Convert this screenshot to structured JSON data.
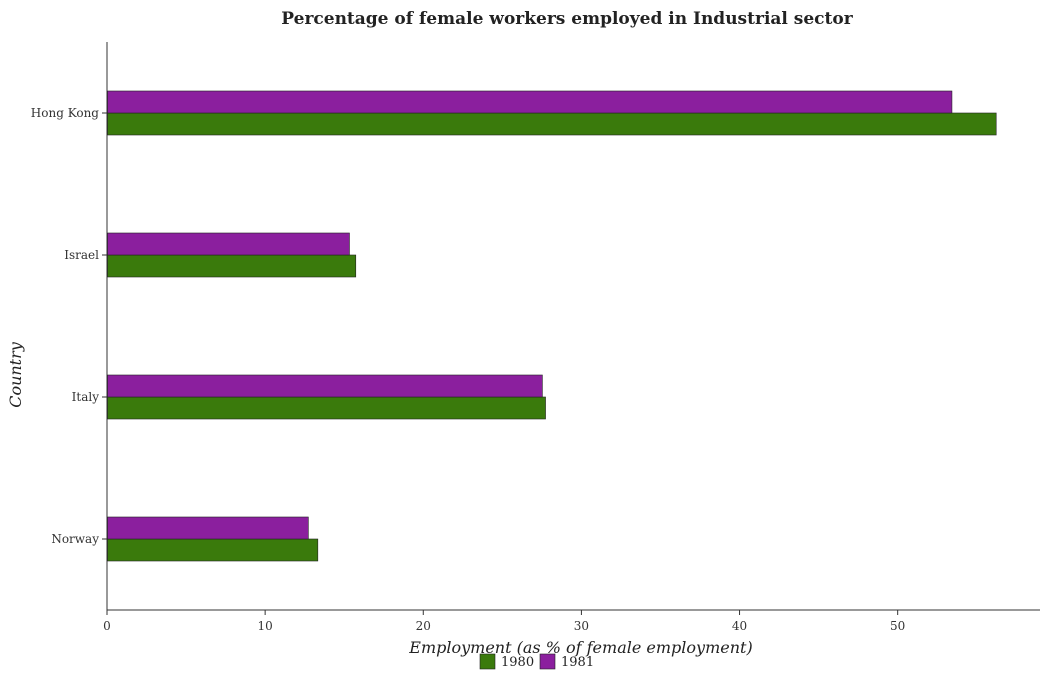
{
  "chart_data": {
    "type": "bar",
    "orientation": "horizontal",
    "title": "Percentage of female workers employed in Industrial sector",
    "xlabel": "Employment (as % of female employment)",
    "ylabel": "Country",
    "categories": [
      "Hong Kong",
      "Israel",
      "Italy",
      "Norway"
    ],
    "series": [
      {
        "name": "1980",
        "color": "#3a7a0c",
        "values": [
          56.2,
          15.7,
          27.7,
          13.3
        ]
      },
      {
        "name": "1981",
        "color": "#8b1f9e",
        "values": [
          53.4,
          15.3,
          27.5,
          12.7
        ]
      }
    ],
    "xlim": [
      0,
      59
    ],
    "xticks": [
      0,
      10,
      20,
      30,
      40,
      50
    ],
    "grid": false,
    "legend_position": "bottom-center"
  }
}
